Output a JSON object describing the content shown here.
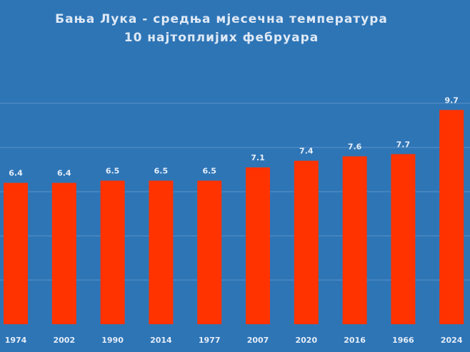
{
  "chart_data": {
    "type": "bar",
    "title": "Бања Лука - средња мјесечна температура",
    "subtitle": "10 најтоплијих фебруара",
    "categories": [
      "1974",
      "2002",
      "1990",
      "2014",
      "1977",
      "2007",
      "2020",
      "2016",
      "1966",
      "2024"
    ],
    "values": [
      6.4,
      6.4,
      6.5,
      6.5,
      6.5,
      7.1,
      7.4,
      7.6,
      7.7,
      9.7
    ],
    "ylim": [
      0,
      12
    ],
    "grid": true,
    "legend": "none",
    "colors": {
      "background": "#2e75b6",
      "bar": "#ff3300",
      "grid": "#5b93c7",
      "text": "#e6eef8"
    }
  }
}
